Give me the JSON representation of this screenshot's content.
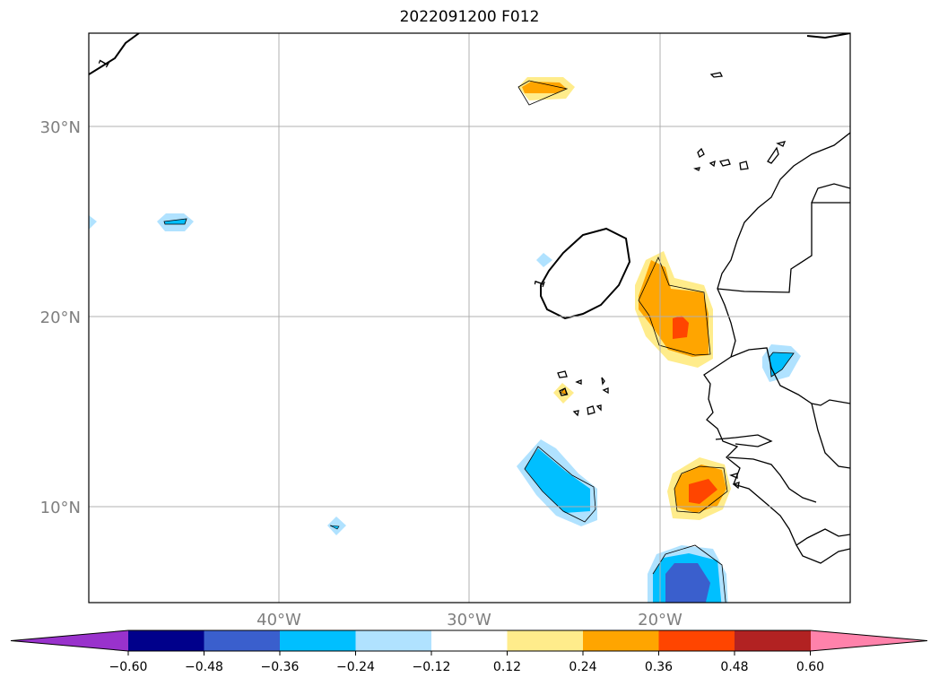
{
  "title": "2022091200 F012",
  "map": {
    "lat_labels": [
      {
        "lat": 30,
        "text": "30°N"
      },
      {
        "lat": 20,
        "text": "20°N"
      },
      {
        "lat": 10,
        "text": "10°N"
      }
    ],
    "lon_labels": [
      {
        "lon": -40,
        "text": "40°W"
      },
      {
        "lon": -30,
        "text": "30°W"
      },
      {
        "lon": -20,
        "text": "20°W"
      }
    ],
    "extent": {
      "lon_min": -50,
      "lon_max": -10,
      "lat_min": 5,
      "lat_max": 35
    },
    "contour_label": "1",
    "gridlines": true
  },
  "colorbar": {
    "colors": [
      "#9932cc",
      "#00008b",
      "#3a5fcd",
      "#00bfff",
      "#b0e2ff",
      "#ffffff",
      "#ffec8b",
      "#ffa500",
      "#ff4500",
      "#b22222",
      "#ff82ab"
    ],
    "tick_labels": [
      "−0.60",
      "−0.48",
      "−0.36",
      "−0.24",
      "−0.12",
      "0.12",
      "0.24",
      "0.36",
      "0.48",
      "0.60"
    ]
  }
}
